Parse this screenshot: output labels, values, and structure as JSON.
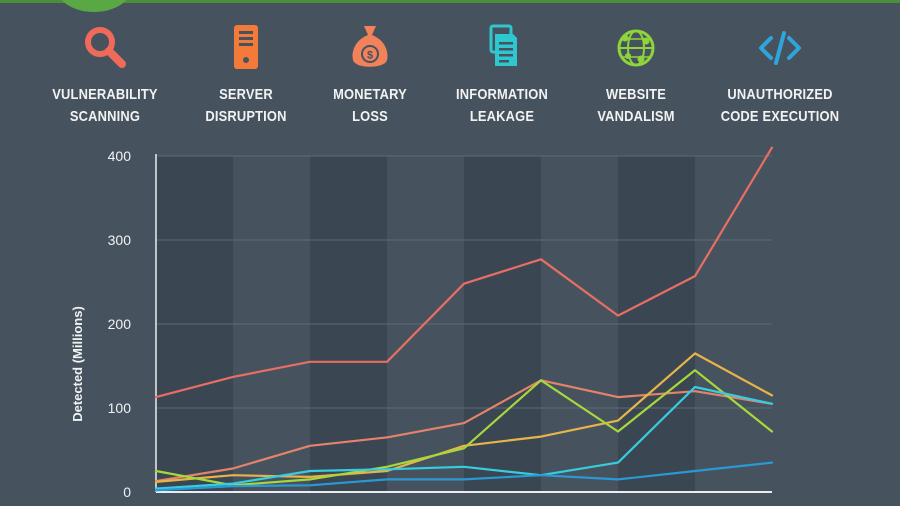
{
  "colors": {
    "background": "#46535f",
    "band": "#3a4652",
    "axis": "#e9edf0",
    "gridline": "#5d6a76",
    "text": "#f2f2f2",
    "brand_green": "#5aa845"
  },
  "legend": [
    {
      "label": "VULNERABILITY\nSCANNING",
      "icon": "magnifier-icon",
      "color": "#f06a5a"
    },
    {
      "label": "SERVER\nDISRUPTION",
      "icon": "server-icon",
      "color": "#f47a3a"
    },
    {
      "label": "MONETARY\nLOSS",
      "icon": "money-bag-icon",
      "color": "#f2825a"
    },
    {
      "label": "INFORMATION\nLEAKAGE",
      "icon": "document-icon",
      "color": "#2ec7cf"
    },
    {
      "label": "WEBSITE\nVANDALISM",
      "icon": "globe-icon",
      "color": "#8fd43a"
    },
    {
      "label": "UNAUTHORIZED\nCODE EXECUTION",
      "icon": "code-icon",
      "color": "#2ea6dc"
    }
  ],
  "chart_data": {
    "type": "line",
    "ylabel": "Detected (Millions)",
    "xlabel": "",
    "ylim": [
      0,
      400
    ],
    "yticks": [
      0,
      100,
      200,
      300,
      400
    ],
    "grid": true,
    "x": [
      0,
      1,
      2,
      3,
      4,
      5,
      6,
      7,
      8
    ],
    "series": [
      {
        "color": "#e86e64",
        "values": [
          113,
          137,
          155,
          155,
          248,
          277,
          210,
          257,
          410
        ]
      },
      {
        "color": "#e3836a",
        "values": [
          13,
          28,
          55,
          65,
          82,
          133,
          113,
          120,
          105
        ]
      },
      {
        "color": "#e7b44a",
        "values": [
          12,
          20,
          18,
          25,
          55,
          66,
          85,
          165,
          115
        ]
      },
      {
        "color": "#a6d83c",
        "values": [
          25,
          8,
          15,
          30,
          52,
          133,
          72,
          145,
          72
        ]
      },
      {
        "color": "#37cde0",
        "values": [
          4,
          10,
          25,
          27,
          30,
          20,
          35,
          125,
          105
        ]
      },
      {
        "color": "#2b98d6",
        "values": [
          2,
          7,
          8,
          15,
          15,
          20,
          15,
          25,
          35
        ]
      }
    ]
  }
}
